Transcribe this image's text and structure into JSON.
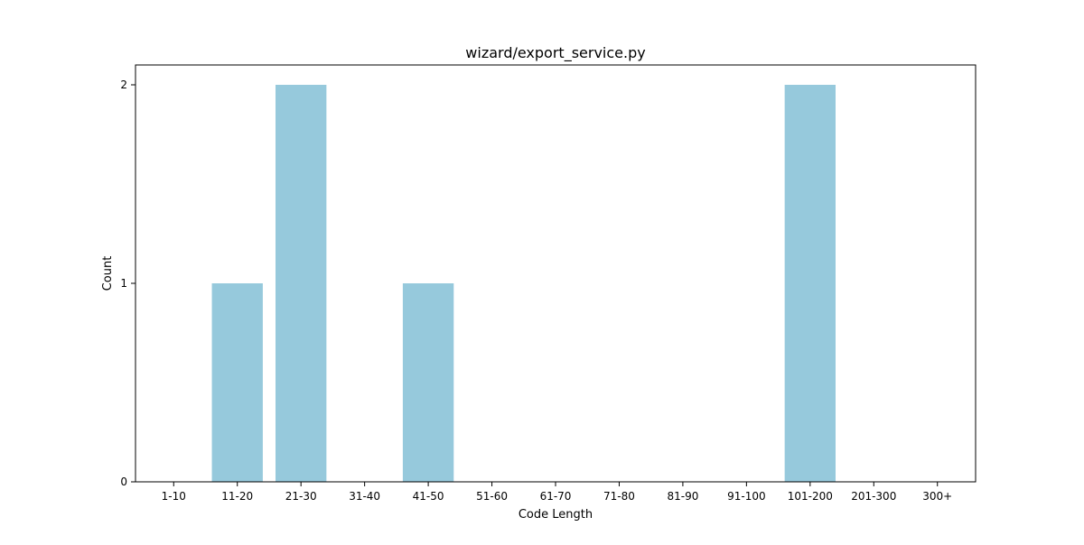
{
  "chart_data": {
    "type": "bar",
    "title": "wizard/export_service.py",
    "xlabel": "Code Length",
    "ylabel": "Count",
    "categories": [
      "1-10",
      "11-20",
      "21-30",
      "31-40",
      "41-50",
      "51-60",
      "61-70",
      "71-80",
      "81-90",
      "91-100",
      "101-200",
      "201-300",
      "300+"
    ],
    "values": [
      0,
      1,
      2,
      0,
      1,
      0,
      0,
      0,
      0,
      0,
      2,
      0,
      0
    ],
    "yticks": [
      0,
      1,
      2
    ],
    "ylim": [
      0,
      2.1
    ],
    "bar_color": "#96c9dc",
    "grid": false,
    "legend": "none"
  }
}
